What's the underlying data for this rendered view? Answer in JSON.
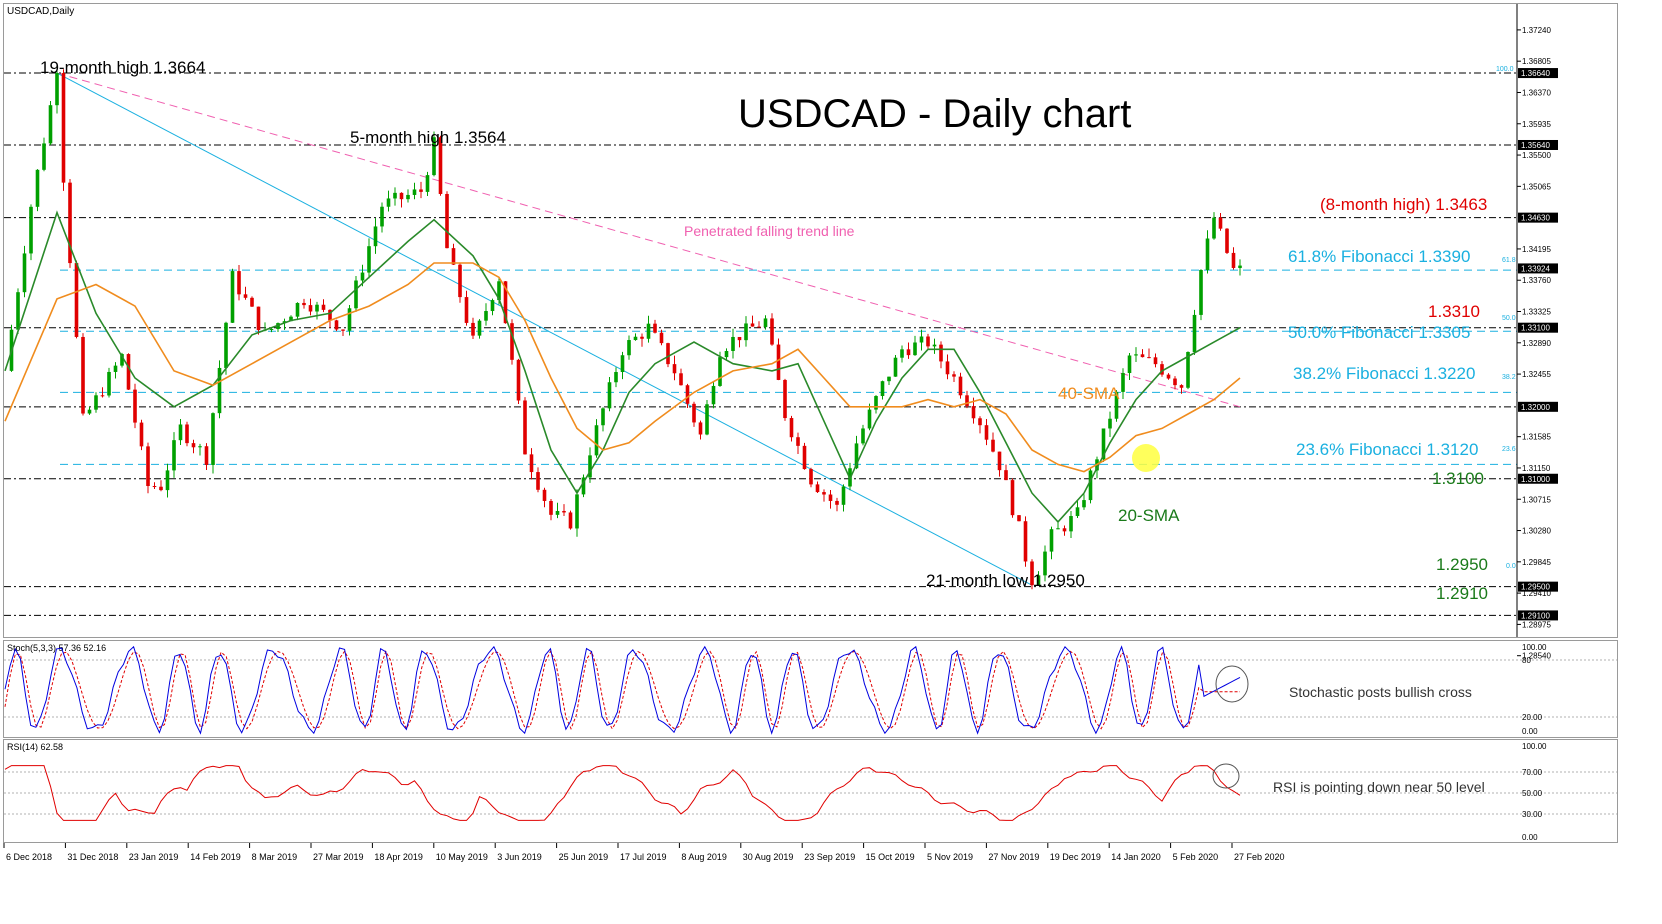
{
  "window": {
    "symbol_label": "USDCAD,Daily"
  },
  "chart_data": {
    "type": "candlestick",
    "title": "USDCAD - Daily chart",
    "price_axis": {
      "ylim": [
        1.288,
        1.376
      ],
      "ticks": [
        "1.37240",
        "1.36805",
        "1.36370",
        "1.35935",
        "1.35500",
        "1.35065",
        "1.34195",
        "1.33760",
        "1.33325",
        "1.32890",
        "1.32455",
        "1.31585",
        "1.31150",
        "1.30715",
        "1.30280",
        "1.29845",
        "1.29410",
        "1.28975",
        "1.28540"
      ],
      "level_tags": [
        "1.36640",
        "1.35640",
        "1.34630",
        "1.33924",
        "1.33100",
        "1.32000",
        "1.31000",
        "1.29500",
        "1.29100"
      ]
    },
    "time_axis": {
      "labels": [
        "6 Dec 2018",
        "31 Dec 2018",
        "23 Jan 2019",
        "14 Feb 2019",
        "8 Mar 2019",
        "27 Mar 2019",
        "18 Apr 2019",
        "10 May 2019",
        "3 Jun 2019",
        "25 Jun 2019",
        "17 Jul 2019",
        "8 Aug 2019",
        "30 Aug 2019",
        "23 Sep 2019",
        "15 Oct 2019",
        "5 Nov 2019",
        "27 Nov 2019",
        "19 Dec 2019",
        "14 Jan 2020",
        "5 Feb 2020",
        "27 Feb 2020"
      ]
    },
    "close_path": [
      [
        0,
        1.325
      ],
      [
        4,
        1.348
      ],
      [
        8,
        1.3664
      ],
      [
        9,
        1.352
      ],
      [
        12,
        1.318
      ],
      [
        18,
        1.327
      ],
      [
        22,
        1.309
      ],
      [
        24,
        1.309
      ],
      [
        27,
        1.317
      ],
      [
        31,
        1.313
      ],
      [
        35,
        1.338
      ],
      [
        40,
        1.33
      ],
      [
        46,
        1.335
      ],
      [
        52,
        1.331
      ],
      [
        58,
        1.348
      ],
      [
        64,
        1.35
      ],
      [
        66,
        1.3564
      ],
      [
        68,
        1.342
      ],
      [
        72,
        1.329
      ],
      [
        76,
        1.338
      ],
      [
        80,
        1.314
      ],
      [
        84,
        1.305
      ],
      [
        87,
        1.304
      ],
      [
        90,
        1.314
      ],
      [
        95,
        1.328
      ],
      [
        99,
        1.331
      ],
      [
        103,
        1.325
      ],
      [
        107,
        1.316
      ],
      [
        110,
        1.328
      ],
      [
        113,
        1.33
      ],
      [
        117,
        1.332
      ],
      [
        120,
        1.319
      ],
      [
        124,
        1.31
      ],
      [
        128,
        1.306
      ],
      [
        131,
        1.315
      ],
      [
        135,
        1.323
      ],
      [
        138,
        1.328
      ],
      [
        142,
        1.329
      ],
      [
        146,
        1.324
      ],
      [
        150,
        1.318
      ],
      [
        153,
        1.312
      ],
      [
        156,
        1.303
      ],
      [
        158,
        1.2952
      ],
      [
        161,
        1.302
      ],
      [
        165,
        1.305
      ],
      [
        169,
        1.316
      ],
      [
        173,
        1.327
      ],
      [
        177,
        1.326
      ],
      [
        181,
        1.323
      ],
      [
        184,
        1.339
      ],
      [
        186,
        1.3463
      ],
      [
        189,
        1.339
      ]
    ],
    "candle_colors": {
      "bull": "#00a000",
      "bear": "#e00000"
    },
    "sma20": {
      "label": "20-SMA",
      "color": "#2a8a2a",
      "points": [
        [
          0,
          1.325
        ],
        [
          8,
          1.347
        ],
        [
          14,
          1.333
        ],
        [
          20,
          1.324
        ],
        [
          26,
          1.32
        ],
        [
          32,
          1.323
        ],
        [
          38,
          1.33
        ],
        [
          44,
          1.332
        ],
        [
          50,
          1.333
        ],
        [
          56,
          1.338
        ],
        [
          62,
          1.343
        ],
        [
          66,
          1.346
        ],
        [
          72,
          1.341
        ],
        [
          76,
          1.335
        ],
        [
          80,
          1.325
        ],
        [
          84,
          1.314
        ],
        [
          88,
          1.308
        ],
        [
          92,
          1.314
        ],
        [
          96,
          1.322
        ],
        [
          100,
          1.326
        ],
        [
          106,
          1.329
        ],
        [
          112,
          1.326
        ],
        [
          118,
          1.325
        ],
        [
          122,
          1.326
        ],
        [
          126,
          1.318
        ],
        [
          130,
          1.31
        ],
        [
          134,
          1.318
        ],
        [
          138,
          1.324
        ],
        [
          142,
          1.328
        ],
        [
          146,
          1.328
        ],
        [
          150,
          1.322
        ],
        [
          154,
          1.315
        ],
        [
          158,
          1.308
        ],
        [
          162,
          1.304
        ],
        [
          166,
          1.308
        ],
        [
          170,
          1.315
        ],
        [
          174,
          1.321
        ],
        [
          178,
          1.325
        ],
        [
          182,
          1.327
        ],
        [
          186,
          1.329
        ],
        [
          190,
          1.331
        ]
      ]
    },
    "sma40": {
      "label": "40-SMA",
      "color": "#f08c1e",
      "points": [
        [
          0,
          1.318
        ],
        [
          8,
          1.335
        ],
        [
          14,
          1.337
        ],
        [
          20,
          1.334
        ],
        [
          26,
          1.325
        ],
        [
          32,
          1.323
        ],
        [
          38,
          1.326
        ],
        [
          44,
          1.329
        ],
        [
          50,
          1.332
        ],
        [
          56,
          1.334
        ],
        [
          62,
          1.337
        ],
        [
          66,
          1.34
        ],
        [
          72,
          1.34
        ],
        [
          76,
          1.338
        ],
        [
          80,
          1.332
        ],
        [
          84,
          1.324
        ],
        [
          88,
          1.317
        ],
        [
          92,
          1.314
        ],
        [
          96,
          1.315
        ],
        [
          100,
          1.318
        ],
        [
          106,
          1.322
        ],
        [
          112,
          1.325
        ],
        [
          118,
          1.326
        ],
        [
          122,
          1.328
        ],
        [
          126,
          1.324
        ],
        [
          130,
          1.32
        ],
        [
          134,
          1.32
        ],
        [
          138,
          1.32
        ],
        [
          142,
          1.321
        ],
        [
          146,
          1.32
        ],
        [
          150,
          1.321
        ],
        [
          154,
          1.319
        ],
        [
          158,
          1.314
        ],
        [
          162,
          1.312
        ],
        [
          166,
          1.311
        ],
        [
          170,
          1.313
        ],
        [
          174,
          1.316
        ],
        [
          178,
          1.317
        ],
        [
          182,
          1.319
        ],
        [
          186,
          1.321
        ],
        [
          190,
          1.324
        ]
      ]
    },
    "horizontal_levels": [
      {
        "value": 1.3664,
        "style": "black-dashdot"
      },
      {
        "value": 1.3564,
        "style": "black-dashdot"
      },
      {
        "value": 1.3463,
        "style": "black-dashdot"
      },
      {
        "value": 1.339,
        "style": "fib"
      },
      {
        "value": 1.331,
        "style": "black-dashdot"
      },
      {
        "value": 1.3305,
        "style": "fib"
      },
      {
        "value": 1.322,
        "style": "fib"
      },
      {
        "value": 1.32,
        "style": "black-dashdot"
      },
      {
        "value": 1.312,
        "style": "fib"
      },
      {
        "value": 1.31,
        "style": "black-dashdot"
      },
      {
        "value": 1.295,
        "style": "black-dashdot"
      },
      {
        "value": 1.291,
        "style": "black-dashdot"
      }
    ],
    "fib_small_labels": [
      "100.0",
      "61.8",
      "50.0",
      "38.2",
      "23.6",
      "0.0"
    ],
    "trendline_pink": {
      "from": [
        8,
        1.3664
      ],
      "to": [
        190,
        1.32
      ]
    },
    "trendline_blue": {
      "from": [
        8,
        1.3664
      ],
      "to": [
        158,
        1.2952
      ]
    },
    "annotations": {
      "high19": "19-month high 1.3664",
      "high5": "5-month high 1.3564",
      "high8": "(8-month high) 1.3463",
      "trend": "Penetrated falling trend line",
      "fib618": "61.8% Fibonacci 1.3390",
      "lvl1331": "1.3310",
      "fib50": "50.0% Fibonacci 1.3305",
      "fib382": "38.2% Fibonacci 1.3220",
      "sma40": "40-SMA",
      "fib236": "23.6% Fibonacci 1.3120",
      "lvl131": "1.3100",
      "sma20": "20-SMA",
      "lvl1295": "1.2950",
      "low21": "21-month low 1.2950",
      "lvl1291": "1.2910"
    },
    "stochastic": {
      "label": "Stoch(5,3,3) 57.36 52.16",
      "ticks": [
        "100.00",
        "80",
        "20.00",
        "0.00"
      ],
      "annotation": "Stochastic posts bullish cross",
      "k_color": "#0000e0",
      "d_color": "#e00000"
    },
    "rsi": {
      "label": "RSI(14) 62.58",
      "ticks": [
        "100.00",
        "70.00",
        "50.00",
        "30.00",
        "0.00"
      ],
      "annotation": "RSI is pointing down near 50 level",
      "color": "#e00000"
    },
    "colors": {
      "fib": "#1ab0e0",
      "pink": "#f060b0",
      "red_text": "#e00000",
      "green_text": "#1a7a1a",
      "orange": "#f08c1e"
    }
  }
}
